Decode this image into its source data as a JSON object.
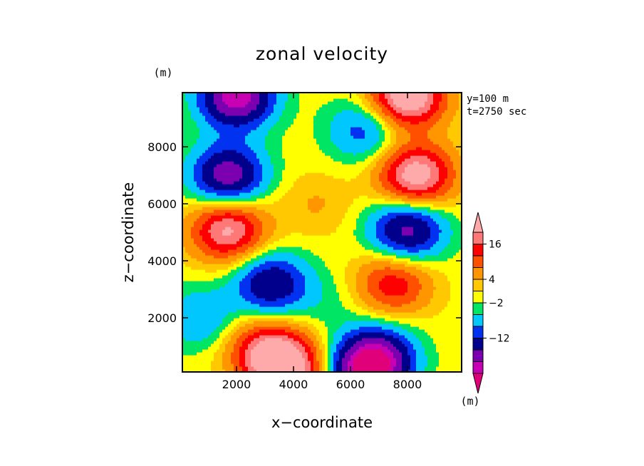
{
  "chart_data": {
    "type": "heatmap",
    "title": "zonal velocity",
    "xlabel": "x−coordinate",
    "ylabel": "z−coordinate",
    "x_unit": "(m)",
    "y_unit": "(m)",
    "annotations": [
      "y=100 m",
      "t=2750 sec"
    ],
    "xlim": [
      100,
      9900
    ],
    "ylim": [
      100,
      9900
    ],
    "x_ticks": [
      2000,
      4000,
      6000,
      8000
    ],
    "y_ticks": [
      2000,
      4000,
      6000,
      8000
    ],
    "x_tick_labels": [
      "2000",
      "4000",
      "6000",
      "8000"
    ],
    "y_tick_labels": [
      "2000",
      "4000",
      "6000",
      "8000"
    ],
    "colorbar": {
      "unit": "(m)",
      "labeled_levels": [
        "16",
        "4",
        "−2",
        "−12"
      ],
      "colors": [
        "#e0007a",
        "#c800b4",
        "#7a00b0",
        "#00008c",
        "#0032f0",
        "#00c8ff",
        "#00e664",
        "#ffff00",
        "#ffc800",
        "#ff9600",
        "#ff5000",
        "#ff0000",
        "#ff7878",
        "#ffaaaa"
      ]
    },
    "features": [
      {
        "x": 1700,
        "z": 7000,
        "u": -16
      },
      {
        "x": 1700,
        "z": 5100,
        "u": 16
      },
      {
        "x": 8300,
        "z": 7000,
        "u": 18
      },
      {
        "x": 8000,
        "z": 5100,
        "u": -15
      },
      {
        "x": 2000,
        "z": 9800,
        "u": -20
      },
      {
        "x": 8000,
        "z": 9800,
        "u": 20
      },
      {
        "x": 6500,
        "z": 8600,
        "u": -8
      },
      {
        "x": 3200,
        "z": 3200,
        "u": -13
      },
      {
        "x": 700,
        "z": 2000,
        "u": -6
      },
      {
        "x": 7500,
        "z": 3200,
        "u": 11
      },
      {
        "x": 3000,
        "z": 900,
        "u": 12
      },
      {
        "x": 3800,
        "z": 200,
        "u": 17
      },
      {
        "x": 7000,
        "z": 700,
        "u": -12
      },
      {
        "x": 6500,
        "z": 100,
        "u": -17
      },
      {
        "x": 4800,
        "z": 6000,
        "u": 3
      },
      {
        "x": 5200,
        "z": 2600,
        "u": -2
      }
    ]
  }
}
